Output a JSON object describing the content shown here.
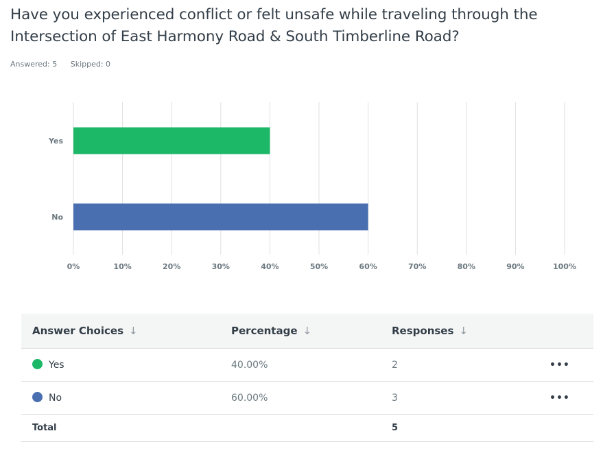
{
  "question": {
    "title": "Have you experienced conflict or felt unsafe while traveling through the Intersection of East Harmony Road & South Timberline Road?"
  },
  "stats": {
    "answered": "Answered: 5",
    "skipped": "Skipped: 0"
  },
  "chart_data": {
    "type": "bar",
    "orientation": "horizontal",
    "categories": [
      "Yes",
      "No"
    ],
    "values": [
      40,
      60
    ],
    "colors": [
      "#1cb867",
      "#4a6fb0"
    ],
    "xlim": [
      0,
      100
    ],
    "x_ticks": [
      "0%",
      "10%",
      "20%",
      "30%",
      "40%",
      "50%",
      "60%",
      "70%",
      "80%",
      "90%",
      "100%"
    ],
    "grid": true,
    "title": "",
    "xlabel": "",
    "ylabel": ""
  },
  "table": {
    "headers": [
      "Answer Choices",
      "Percentage",
      "Responses"
    ],
    "sort_icon": "arrow-down-icon",
    "rows": [
      {
        "choice": "Yes",
        "percentage": "40.00%",
        "responses": "2",
        "color": "#1cb867",
        "menu": "•••"
      },
      {
        "choice": "No",
        "percentage": "60.00%",
        "responses": "3",
        "color": "#4a6fb0",
        "menu": "•••"
      }
    ],
    "total_label": "Total",
    "total_value": "5"
  }
}
